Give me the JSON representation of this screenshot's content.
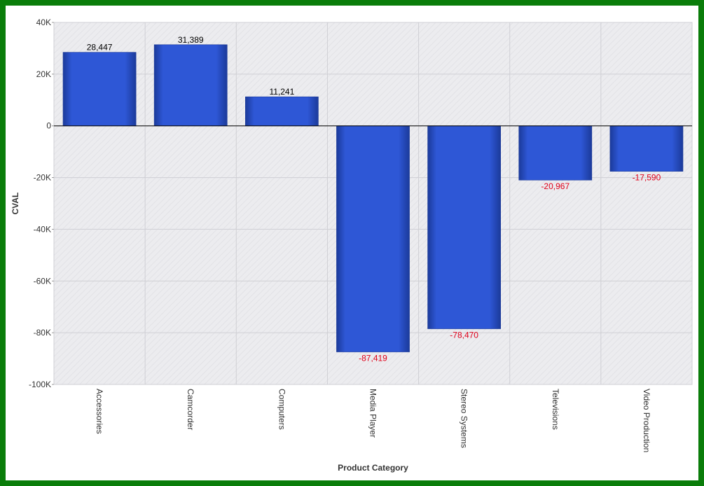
{
  "chart_data": {
    "type": "bar",
    "title": "",
    "xlabel": "Product Category",
    "ylabel": "CVAL",
    "categories": [
      "Accessories",
      "Camcorder",
      "Computers",
      "Media Player",
      "Stereo Systems",
      "Televisions",
      "Video Production"
    ],
    "values": [
      28447,
      31389,
      11241,
      -87419,
      -78470,
      -20967,
      -17590
    ],
    "value_labels": [
      "28,447",
      "31,389",
      "11,241",
      "-87,419",
      "-78,470",
      "-20,967",
      "-17,590"
    ],
    "ylim": [
      -100000,
      40000
    ],
    "yticks": [
      {
        "value": 40000,
        "label": "40K"
      },
      {
        "value": 20000,
        "label": "20K"
      },
      {
        "value": 0,
        "label": "0"
      },
      {
        "value": -20000,
        "label": "-20K"
      },
      {
        "value": -40000,
        "label": "-40K"
      },
      {
        "value": -60000,
        "label": "-60K"
      },
      {
        "value": -80000,
        "label": "-80K"
      },
      {
        "value": -100000,
        "label": "-100K"
      }
    ],
    "grid": true,
    "legend": "none",
    "colors": {
      "bar": "#2e57d6",
      "bar_edge": "#1b3a9a",
      "positive_label": "#000000",
      "negative_label": "#e0001a",
      "frame": "#0a7d0a",
      "plot_bg": "#ebebee",
      "grid": "#cfcfd4"
    }
  }
}
